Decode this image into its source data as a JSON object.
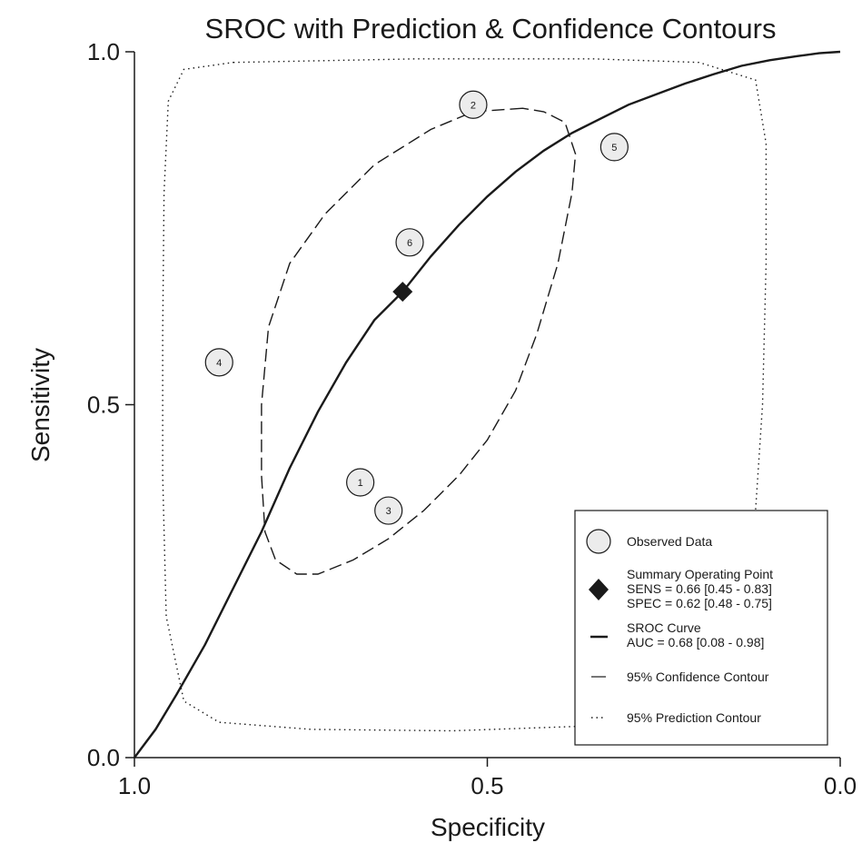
{
  "chart_data": {
    "type": "scatter",
    "title": "SROC with Prediction & Confidence Contours",
    "xlabel": "Specificity",
    "ylabel": "Sensitivity",
    "xlim": [
      1.0,
      0.0
    ],
    "ylim": [
      0.0,
      1.0
    ],
    "x_reversed": true,
    "grid": false,
    "legend_position": "bottom-right",
    "x_ticks": [
      "1.0",
      "0.5",
      "0.0"
    ],
    "y_ticks": [
      "0.0",
      "0.5",
      "1.0"
    ],
    "observed_data": {
      "legend": "Observed Data",
      "points": [
        {
          "label": "1",
          "specificity": 0.68,
          "sensitivity": 0.39
        },
        {
          "label": "2",
          "specificity": 0.52,
          "sensitivity": 0.925
        },
        {
          "label": "3",
          "specificity": 0.64,
          "sensitivity": 0.35
        },
        {
          "label": "4",
          "specificity": 0.88,
          "sensitivity": 0.56
        },
        {
          "label": "5",
          "specificity": 0.32,
          "sensitivity": 0.865
        },
        {
          "label": "6",
          "specificity": 0.61,
          "sensitivity": 0.73
        }
      ]
    },
    "summary_point": {
      "legend_lines": [
        "Summary Operating Point",
        "SENS = 0.66 [0.45 - 0.83]",
        "SPEC = 0.62 [0.48 - 0.75]"
      ],
      "specificity": 0.62,
      "sensitivity": 0.66
    },
    "sroc_curve": {
      "legend_lines": [
        "SROC Curve",
        "AUC = 0.68 [0.08 - 0.98]"
      ],
      "points": [
        [
          1.0,
          0.0
        ],
        [
          0.97,
          0.04
        ],
        [
          0.94,
          0.09
        ],
        [
          0.9,
          0.16
        ],
        [
          0.86,
          0.24
        ],
        [
          0.82,
          0.32
        ],
        [
          0.78,
          0.41
        ],
        [
          0.74,
          0.49
        ],
        [
          0.7,
          0.56
        ],
        [
          0.66,
          0.62
        ],
        [
          0.62,
          0.66
        ],
        [
          0.58,
          0.71
        ],
        [
          0.54,
          0.755
        ],
        [
          0.5,
          0.795
        ],
        [
          0.46,
          0.83
        ],
        [
          0.42,
          0.86
        ],
        [
          0.38,
          0.885
        ],
        [
          0.34,
          0.905
        ],
        [
          0.3,
          0.925
        ],
        [
          0.26,
          0.94
        ],
        [
          0.22,
          0.955
        ],
        [
          0.18,
          0.968
        ],
        [
          0.14,
          0.98
        ],
        [
          0.1,
          0.988
        ],
        [
          0.06,
          0.994
        ],
        [
          0.03,
          0.998
        ],
        [
          0.0,
          1.0
        ]
      ]
    },
    "confidence_contour": {
      "legend": "95% Confidence Contour",
      "points": [
        [
          0.45,
          0.92
        ],
        [
          0.52,
          0.915
        ],
        [
          0.58,
          0.89
        ],
        [
          0.66,
          0.84
        ],
        [
          0.73,
          0.77
        ],
        [
          0.78,
          0.7
        ],
        [
          0.81,
          0.61
        ],
        [
          0.82,
          0.5
        ],
        [
          0.82,
          0.4
        ],
        [
          0.815,
          0.32
        ],
        [
          0.8,
          0.28
        ],
        [
          0.77,
          0.26
        ],
        [
          0.74,
          0.26
        ],
        [
          0.69,
          0.28
        ],
        [
          0.64,
          0.31
        ],
        [
          0.59,
          0.35
        ],
        [
          0.54,
          0.4
        ],
        [
          0.5,
          0.45
        ],
        [
          0.46,
          0.52
        ],
        [
          0.43,
          0.6
        ],
        [
          0.4,
          0.7
        ],
        [
          0.38,
          0.8
        ],
        [
          0.375,
          0.855
        ],
        [
          0.39,
          0.9
        ],
        [
          0.42,
          0.915
        ],
        [
          0.45,
          0.92
        ]
      ]
    },
    "prediction_contour": {
      "legend": "95% Prediction Contour",
      "points": [
        [
          0.86,
          0.985
        ],
        [
          0.6,
          0.99
        ],
        [
          0.35,
          0.99
        ],
        [
          0.2,
          0.985
        ],
        [
          0.12,
          0.96
        ],
        [
          0.105,
          0.87
        ],
        [
          0.105,
          0.7
        ],
        [
          0.11,
          0.5
        ],
        [
          0.12,
          0.35
        ],
        [
          0.13,
          0.2
        ],
        [
          0.15,
          0.09
        ],
        [
          0.2,
          0.055
        ],
        [
          0.35,
          0.045
        ],
        [
          0.55,
          0.038
        ],
        [
          0.75,
          0.04
        ],
        [
          0.88,
          0.05
        ],
        [
          0.93,
          0.08
        ],
        [
          0.955,
          0.2
        ],
        [
          0.96,
          0.4
        ],
        [
          0.96,
          0.6
        ],
        [
          0.958,
          0.8
        ],
        [
          0.952,
          0.93
        ],
        [
          0.93,
          0.975
        ],
        [
          0.86,
          0.985
        ]
      ]
    }
  }
}
